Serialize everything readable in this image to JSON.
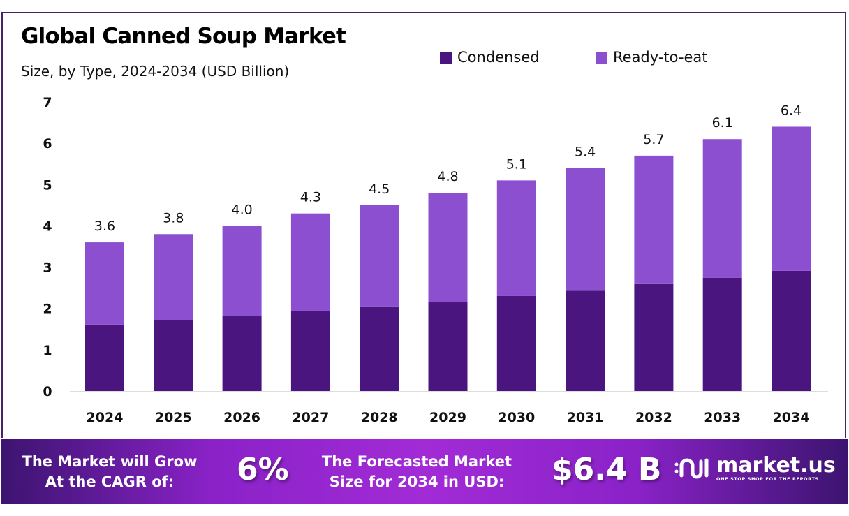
{
  "header": {
    "title": "Global Canned Soup Market",
    "subtitle": "Size, by Type, 2024-2034 (USD Billion)"
  },
  "chart_data": {
    "type": "stacked-bar",
    "title": "Global Canned Soup Market",
    "subtitle": "Size, by Type, 2024-2034 (USD Billion)",
    "categories": [
      "2024",
      "2025",
      "2026",
      "2027",
      "2028",
      "2029",
      "2030",
      "2031",
      "2032",
      "2033",
      "2034"
    ],
    "series": [
      {
        "name": "Condensed",
        "color": "#4b1580",
        "values": [
          1.61,
          1.71,
          1.81,
          1.93,
          2.05,
          2.16,
          2.3,
          2.43,
          2.59,
          2.74,
          2.91
        ]
      },
      {
        "name": "Ready-to-eat",
        "color": "#8b4fd0",
        "values": [
          1.99,
          2.09,
          2.19,
          2.37,
          2.45,
          2.64,
          2.8,
          2.97,
          3.11,
          3.36,
          3.49
        ]
      }
    ],
    "totals": [
      3.6,
      3.8,
      4.0,
      4.3,
      4.5,
      4.8,
      5.1,
      5.4,
      5.7,
      6.1,
      6.4
    ],
    "total_labels": [
      "3.6",
      "3.8",
      "4.0",
      "4.3",
      "4.5",
      "4.8",
      "5.1",
      "5.4",
      "5.7",
      "6.1",
      "6.4"
    ],
    "yticks": [
      "0",
      "1",
      "2",
      "3",
      "4",
      "5",
      "6",
      "7"
    ],
    "ylim": [
      0,
      7
    ],
    "grid": false,
    "legend": "top-right"
  },
  "banner": {
    "cagr_label": "The Market will Grow At the CAGR of:",
    "cagr_label_line1": "The Market will Grow",
    "cagr_label_line2": "At the CAGR of:",
    "cagr_value": "6%",
    "forecast_label_line1": "The Forecasted Market",
    "forecast_label_line2": "Size for 2034 in USD:",
    "forecast_value": "$6.4 B",
    "logo_name": "market.us",
    "logo_tagline": "ONE STOP SHOP FOR THE REPORTS"
  }
}
